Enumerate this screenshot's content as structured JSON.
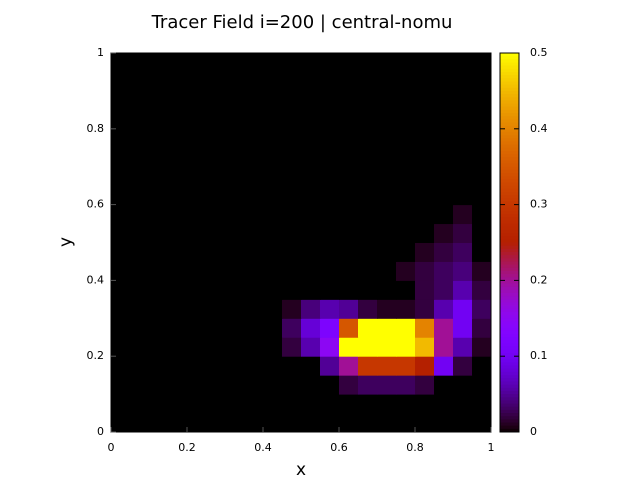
{
  "chart_data": {
    "type": "heatmap",
    "title": "Tracer Field i=200 | central-nomu",
    "x_label": "x",
    "y_label": "y",
    "xlim": [
      0,
      1
    ],
    "ylim": [
      0,
      1
    ],
    "xticks": [
      0,
      0.2,
      0.4,
      0.6,
      0.8,
      1
    ],
    "yticks": [
      0,
      0.2,
      0.4,
      0.6,
      0.8,
      1
    ],
    "clim": [
      0,
      0.5
    ],
    "cticks": [
      0,
      0.1,
      0.2,
      0.3,
      0.4,
      0.5
    ],
    "palette": "gnuplot",
    "z": [
      [
        0,
        0,
        0,
        0,
        0,
        0,
        0,
        0,
        0,
        0,
        0,
        0,
        0,
        0,
        0,
        0,
        0,
        0,
        0,
        0
      ],
      [
        0,
        0,
        0,
        0,
        0,
        0,
        0,
        0,
        0,
        0,
        0,
        0,
        0,
        0,
        0,
        0,
        0,
        0,
        0,
        0
      ],
      [
        0,
        0,
        0,
        0,
        0,
        0,
        0,
        0,
        0,
        0,
        0,
        0,
        0.02,
        0.03,
        0.03,
        0.03,
        0.02,
        0,
        0,
        0
      ],
      [
        0,
        0,
        0,
        0,
        0,
        0,
        0,
        0,
        0,
        0,
        0,
        0.05,
        0.2,
        0.3,
        0.3,
        0.3,
        0.25,
        0.1,
        0.02,
        0
      ],
      [
        0,
        0,
        0,
        0,
        0,
        0,
        0,
        0,
        0,
        0.02,
        0.06,
        0.15,
        0.5,
        0.5,
        0.5,
        0.5,
        0.45,
        0.2,
        0.06,
        0.01
      ],
      [
        0,
        0,
        0,
        0,
        0,
        0,
        0,
        0,
        0,
        0.03,
        0.08,
        0.12,
        0.35,
        0.5,
        0.5,
        0.5,
        0.4,
        0.2,
        0.1,
        0.02
      ],
      [
        0,
        0,
        0,
        0,
        0,
        0,
        0,
        0,
        0,
        0.01,
        0.04,
        0.06,
        0.05,
        0.02,
        0.01,
        0.01,
        0.02,
        0.06,
        0.1,
        0.03
      ],
      [
        0,
        0,
        0,
        0,
        0,
        0,
        0,
        0,
        0,
        0,
        0,
        0,
        0,
        0,
        0,
        0,
        0.02,
        0.03,
        0.06,
        0.02
      ],
      [
        0,
        0,
        0,
        0,
        0,
        0,
        0,
        0,
        0,
        0,
        0,
        0,
        0,
        0,
        0,
        0.01,
        0.02,
        0.03,
        0.04,
        0.01
      ],
      [
        0,
        0,
        0,
        0,
        0,
        0,
        0,
        0,
        0,
        0,
        0,
        0,
        0,
        0,
        0,
        0,
        0.01,
        0.02,
        0.03,
        0
      ],
      [
        0,
        0,
        0,
        0,
        0,
        0,
        0,
        0,
        0,
        0,
        0,
        0,
        0,
        0,
        0,
        0,
        0,
        0.01,
        0.02,
        0
      ],
      [
        0,
        0,
        0,
        0,
        0,
        0,
        0,
        0,
        0,
        0,
        0,
        0,
        0,
        0,
        0,
        0,
        0,
        0,
        0.01,
        0
      ],
      [
        0,
        0,
        0,
        0,
        0,
        0,
        0,
        0,
        0,
        0,
        0,
        0,
        0,
        0,
        0,
        0,
        0,
        0,
        0,
        0
      ],
      [
        0,
        0,
        0,
        0,
        0,
        0,
        0,
        0,
        0,
        0,
        0,
        0,
        0,
        0,
        0,
        0,
        0,
        0,
        0,
        0
      ],
      [
        0,
        0,
        0,
        0,
        0,
        0,
        0,
        0,
        0,
        0,
        0,
        0,
        0,
        0,
        0,
        0,
        0,
        0,
        0,
        0
      ],
      [
        0,
        0,
        0,
        0,
        0,
        0,
        0,
        0,
        0,
        0,
        0,
        0,
        0,
        0,
        0,
        0,
        0,
        0,
        0,
        0
      ],
      [
        0,
        0,
        0,
        0,
        0,
        0,
        0,
        0,
        0,
        0,
        0,
        0,
        0,
        0,
        0,
        0,
        0,
        0,
        0,
        0
      ],
      [
        0,
        0,
        0,
        0,
        0,
        0,
        0,
        0,
        0,
        0,
        0,
        0,
        0,
        0,
        0,
        0,
        0,
        0,
        0,
        0
      ],
      [
        0,
        0,
        0,
        0,
        0,
        0,
        0,
        0,
        0,
        0,
        0,
        0,
        0,
        0,
        0,
        0,
        0,
        0,
        0,
        0
      ],
      [
        0,
        0,
        0,
        0,
        0,
        0,
        0,
        0,
        0,
        0,
        0,
        0,
        0,
        0,
        0,
        0,
        0,
        0,
        0,
        0
      ]
    ]
  }
}
